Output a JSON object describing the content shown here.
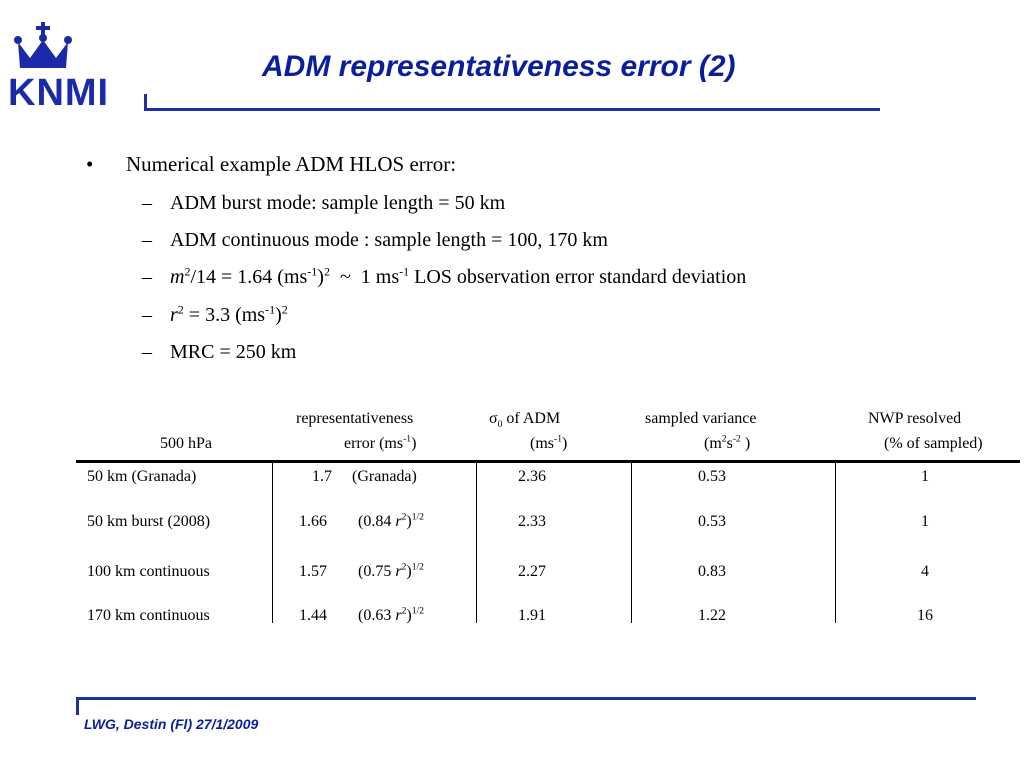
{
  "logo": {
    "text": "KNMI"
  },
  "title": "ADM representativeness error (2)",
  "bullet": {
    "symbol": "•",
    "text": "Numerical example ADM HLOS error:"
  },
  "subitems": {
    "dash": "–",
    "burst": "ADM burst mode: sample length = 50 km",
    "continuous": "ADM continuous mode : sample length = 100, 170 km",
    "m_var": "m",
    "m_sq": "2",
    "m_rest1": "/14 = 1.64 (ms",
    "m_exp1": "-1",
    "m_close": ")",
    "m_sq2": "2",
    "m_tilde": "~",
    "m_rest2": "1 ms",
    "m_exp2": "-1",
    "m_rest3": " LOS observation error standard deviation",
    "r_var": "r",
    "r_sq": "2",
    "r_rest1": " = 3.3 (ms",
    "r_exp": "-1",
    "r_close": ")",
    "r_sq2": "2",
    "mrc": "MRC = 250 km"
  },
  "table": {
    "h_500": "500 hPa",
    "h_rep1": "representativeness",
    "h_rep2a": "error (ms",
    "h_rep2exp": "-1",
    "h_rep2b": ")",
    "h_sig_sym": "σ",
    "h_sig_sub": "0",
    "h_sig_rest": " of ADM",
    "h_sig2a": "(ms",
    "h_sig2exp": "-1",
    "h_sig2b": ")",
    "h_var1": "sampled variance",
    "h_var2a": "(m",
    "h_var2exp1": "2",
    "h_var2b": "s",
    "h_var2exp2": "-2",
    "h_var2c": " )",
    "h_nwp1": "NWP resolved",
    "h_nwp2": "(% of sampled)",
    "rows": [
      {
        "label": "50 km (Granada)",
        "rep_val": "1.7",
        "rep_note": "(Granada)",
        "sigma": "2.36",
        "var": "0.53",
        "nwp": "1"
      },
      {
        "label": "50 km burst (2008)",
        "rep_val": "1.66",
        "rep_note_a": "(0.84 ",
        "rep_r": "r",
        "rep_exp": "2",
        "rep_close": ")",
        "rep_pow": "1/2",
        "sigma": "2.33",
        "var": "0.53",
        "nwp": "1"
      },
      {
        "label": "100 km continuous",
        "rep_val": "1.57",
        "rep_note_a": "(0.75 ",
        "rep_r": "r",
        "rep_exp": "2",
        "rep_close": ")",
        "rep_pow": "1/2",
        "sigma": "2.27",
        "var": "0.83",
        "nwp": "4"
      },
      {
        "label": "170 km continuous",
        "rep_val": "1.44",
        "rep_note_a": "(0.63 ",
        "rep_r": "r",
        "rep_exp": "2",
        "rep_close": ")",
        "rep_pow": "1/2",
        "sigma": "1.91",
        "var": "1.22",
        "nwp": "16"
      }
    ]
  },
  "footer": "LWG, Destin (Fl) 27/1/2009",
  "colors": {
    "brand_blue": "#1a2aa8",
    "title_blue": "#0b1f9c"
  }
}
